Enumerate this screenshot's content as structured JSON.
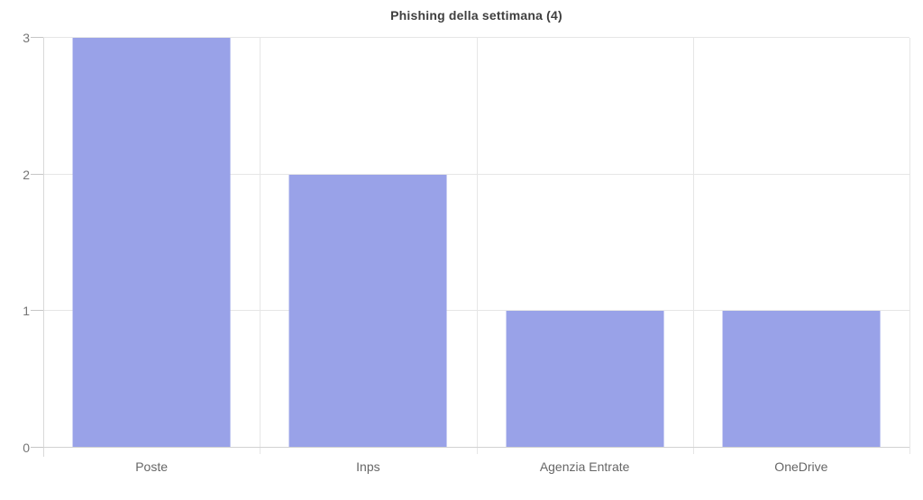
{
  "chart_data": {
    "type": "bar",
    "title": "Phishing della settimana (4)",
    "categories": [
      "Poste",
      "Inps",
      "Agenzia Entrate",
      "OneDrive"
    ],
    "values": [
      3,
      2,
      1,
      1
    ],
    "xlabel": "",
    "ylabel": "",
    "ylim": [
      0,
      3
    ],
    "yticks": [
      0,
      1,
      2,
      3
    ],
    "legend_position": "none",
    "grid": true,
    "colors": {
      "bar": "#99a2e8",
      "gridline": "#e6e6e6",
      "baseline": "#d2d2d2",
      "axis_line": "#d9d9d9",
      "tick": "#c6c6c6",
      "title_text": "#3f3f3f",
      "y_label_text": "#757575",
      "x_label_text": "#666666",
      "background": "#ffffff"
    }
  }
}
